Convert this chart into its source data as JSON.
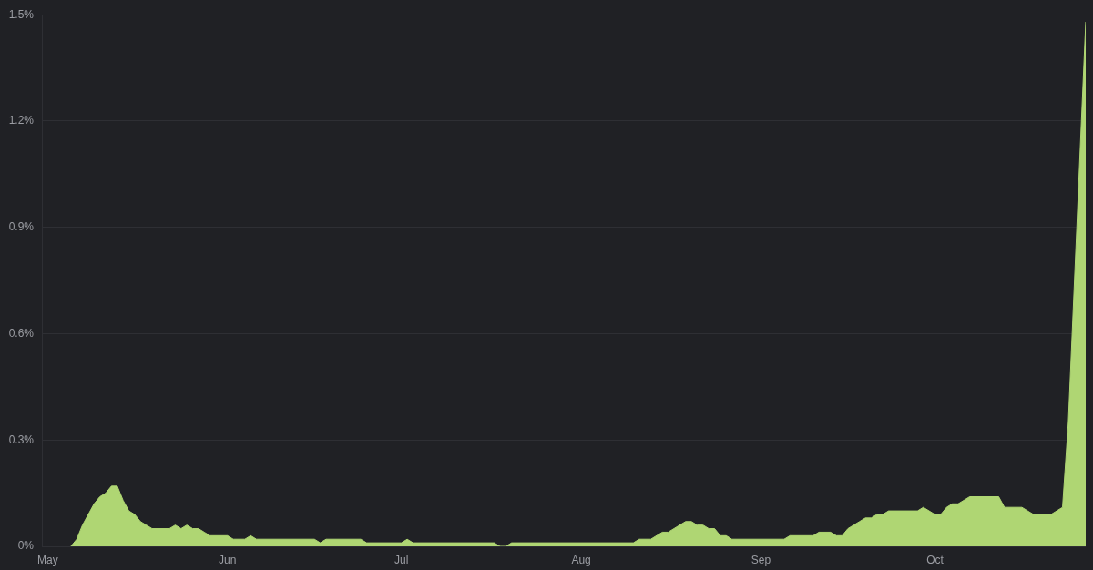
{
  "chart_data": {
    "type": "area",
    "x": [
      "--05-05",
      "--05-06",
      "--05-07",
      "--05-08",
      "--05-09",
      "--05-10",
      "--05-11",
      "--05-12",
      "--05-13",
      "--05-14",
      "--05-15",
      "--05-16",
      "--05-17",
      "--05-18",
      "--05-19",
      "--05-22",
      "--05-23",
      "--05-24",
      "--05-25",
      "--05-26",
      "--05-27",
      "--05-28",
      "--05-29",
      "--06-01",
      "--06-02",
      "--06-04",
      "--06-05",
      "--06-06",
      "--06-16",
      "--06-17",
      "--06-18",
      "--06-24",
      "--06-25",
      "--07-01",
      "--07-02",
      "--07-03",
      "--07-17",
      "--07-18",
      "--07-19",
      "--07-20",
      "--08-10",
      "--08-11",
      "--08-13",
      "--08-15",
      "--08-16",
      "--08-19",
      "--08-20",
      "--08-21",
      "--08-22",
      "--08-23",
      "--08-24",
      "--08-25",
      "--08-26",
      "--08-27",
      "--09-05",
      "--09-06",
      "--09-10",
      "--09-11",
      "--09-13",
      "--09-14",
      "--09-15",
      "--09-16",
      "--09-17",
      "--09-18",
      "--09-19",
      "--09-20",
      "--09-21",
      "--09-22",
      "--09-23",
      "--09-28",
      "--09-29",
      "--10-01",
      "--10-02",
      "--10-03",
      "--10-04",
      "--10-05",
      "--10-07",
      "--10-12",
      "--10-13",
      "--10-16",
      "--10-18",
      "--10-21",
      "--10-23",
      "--10-24",
      "--10-27"
    ],
    "series": [
      {
        "color": "#afd673",
        "values": [
          0,
          0.02,
          0.06,
          0.09,
          0.12,
          0.14,
          0.15,
          0.17,
          0.17,
          0.13,
          0.1,
          0.09,
          0.07,
          0.06,
          0.05,
          0.05,
          0.06,
          0.05,
          0.06,
          0.05,
          0.05,
          0.04,
          0.03,
          0.03,
          0.02,
          0.02,
          0.03,
          0.02,
          0.02,
          0.01,
          0.02,
          0.02,
          0.01,
          0.01,
          0.02,
          0.01,
          0.01,
          0,
          0,
          0.01,
          0.01,
          0.02,
          0.02,
          0.04,
          0.04,
          0.07,
          0.07,
          0.06,
          0.06,
          0.05,
          0.05,
          0.03,
          0.03,
          0.02,
          0.02,
          0.03,
          0.03,
          0.04,
          0.04,
          0.03,
          0.03,
          0.05,
          0.06,
          0.07,
          0.08,
          0.08,
          0.09,
          0.09,
          0.1,
          0.1,
          0.11,
          0.09,
          0.09,
          0.11,
          0.12,
          0.12,
          0.14,
          0.14,
          0.11,
          0.11,
          0.09,
          0.09,
          0.11,
          0.35,
          1.48
        ]
      }
    ],
    "xlim": [
      "--04-30",
      "--10-27"
    ],
    "xticks": [
      {
        "value": "--05-01",
        "label": "May"
      },
      {
        "value": "--06-01",
        "label": "Jun"
      },
      {
        "value": "--07-01",
        "label": "Jul"
      },
      {
        "value": "--08-01",
        "label": "Aug"
      },
      {
        "value": "--09-01",
        "label": "Sep"
      },
      {
        "value": "--10-01",
        "label": "Oct"
      }
    ],
    "ylim": [
      0,
      1.5
    ],
    "yticks": [
      {
        "value": 0,
        "label": "0%"
      },
      {
        "value": 0.3,
        "label": "0.3%"
      },
      {
        "value": 0.6,
        "label": "0.6%"
      },
      {
        "value": 0.9,
        "label": "0.9%"
      },
      {
        "value": 1.2,
        "label": "1.2%"
      },
      {
        "value": 1.5,
        "label": "1.5%"
      }
    ],
    "grid": "y"
  }
}
